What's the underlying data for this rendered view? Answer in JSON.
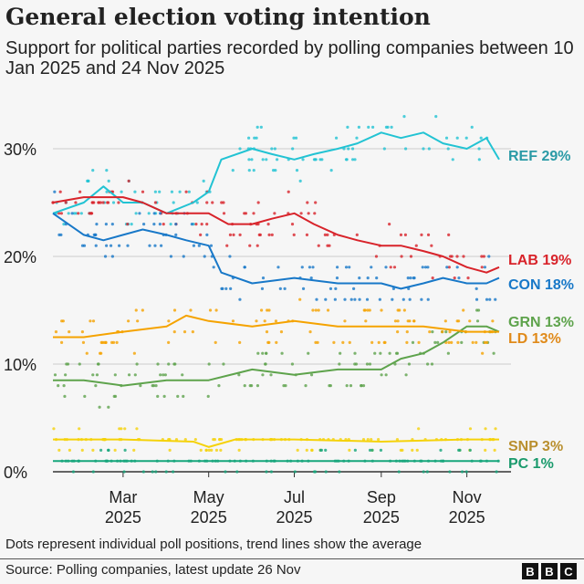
{
  "title": "General election voting intention",
  "subtitle": "Support for political parties recorded by polling companies between 10 Jan 2025 and 24 Nov 2025",
  "note": "Dots represent individual poll positions, trend lines show the average",
  "source": "Source: Polling companies, latest update 26 Nov",
  "logo": [
    "B",
    "B",
    "C"
  ],
  "chart_data": {
    "type": "line",
    "title": "General election voting intention",
    "xlabel": "",
    "ylabel": "",
    "xlim": [
      "2025-01-10",
      "2025-11-24"
    ],
    "ylim": [
      0,
      35
    ],
    "grid": true,
    "y_ticks": [
      "0%",
      "10%",
      "20%",
      "30%"
    ],
    "x_ticks": [
      {
        "date": "2025-03-01",
        "label": [
          "Mar",
          "2025"
        ]
      },
      {
        "date": "2025-05-01",
        "label": [
          "May",
          "2025"
        ]
      },
      {
        "date": "2025-07-01",
        "label": [
          "Jul",
          "2025"
        ]
      },
      {
        "date": "2025-09-01",
        "label": [
          "Sep",
          "2025"
        ]
      },
      {
        "date": "2025-11-01",
        "label": [
          "Nov",
          "2025"
        ]
      }
    ],
    "series": [
      {
        "name": "REF",
        "label": "REF 29%",
        "color": "#22c3d3",
        "label_color": "#2a9aa6",
        "x": [
          "2025-01-10",
          "2025-02-01",
          "2025-02-15",
          "2025-03-01",
          "2025-03-15",
          "2025-04-01",
          "2025-04-20",
          "2025-05-01",
          "2025-05-10",
          "2025-06-01",
          "2025-06-15",
          "2025-07-01",
          "2025-07-15",
          "2025-08-01",
          "2025-08-15",
          "2025-09-01",
          "2025-09-15",
          "2025-10-01",
          "2025-10-15",
          "2025-11-01",
          "2025-11-15",
          "2025-11-24"
        ],
        "y": [
          24,
          25,
          26.5,
          25,
          25,
          24,
          25,
          26,
          29,
          30,
          29.5,
          29,
          29.5,
          30,
          30.5,
          31.5,
          31,
          31.5,
          30.5,
          30,
          31,
          29
        ]
      },
      {
        "name": "LAB",
        "label": "LAB 19%",
        "color": "#d8232a",
        "label_color": "#d8232a",
        "x": [
          "2025-01-10",
          "2025-02-01",
          "2025-03-01",
          "2025-03-15",
          "2025-04-01",
          "2025-05-01",
          "2025-05-15",
          "2025-06-01",
          "2025-06-15",
          "2025-07-01",
          "2025-07-15",
          "2025-08-01",
          "2025-08-15",
          "2025-09-01",
          "2025-09-15",
          "2025-10-01",
          "2025-10-15",
          "2025-11-01",
          "2025-11-15",
          "2025-11-24"
        ],
        "y": [
          25,
          25.5,
          25.5,
          25,
          24,
          24,
          23,
          23,
          23.5,
          24,
          23,
          22,
          21.5,
          21,
          21,
          20.5,
          20,
          19,
          18.5,
          19
        ]
      },
      {
        "name": "CON",
        "label": "CON 18%",
        "color": "#1878c8",
        "label_color": "#1878c8",
        "x": [
          "2025-01-10",
          "2025-02-01",
          "2025-02-15",
          "2025-03-01",
          "2025-03-15",
          "2025-04-01",
          "2025-04-15",
          "2025-05-01",
          "2025-05-10",
          "2025-06-01",
          "2025-07-01",
          "2025-08-01",
          "2025-09-01",
          "2025-09-15",
          "2025-10-01",
          "2025-10-15",
          "2025-11-01",
          "2025-11-15",
          "2025-11-24"
        ],
        "y": [
          24,
          22,
          21.5,
          22,
          22.5,
          22,
          21.5,
          21,
          18.5,
          17.5,
          18,
          17.5,
          17.5,
          17,
          17.5,
          18,
          17.5,
          17.5,
          18
        ]
      },
      {
        "name": "GRN",
        "label": "GRN 13%",
        "color": "#5ea34c",
        "label_color": "#5ea34c",
        "x": [
          "2025-01-10",
          "2025-02-01",
          "2025-03-01",
          "2025-04-01",
          "2025-05-01",
          "2025-06-01",
          "2025-07-01",
          "2025-08-01",
          "2025-09-01",
          "2025-09-15",
          "2025-10-01",
          "2025-10-15",
          "2025-11-01",
          "2025-11-15",
          "2025-11-24"
        ],
        "y": [
          8.5,
          8.5,
          8,
          8.5,
          8.5,
          9.5,
          9,
          9.5,
          9.5,
          10.5,
          11,
          12,
          13.5,
          13.5,
          13
        ]
      },
      {
        "name": "LD",
        "label": "LD 13%",
        "color": "#f5a300",
        "label_color": "#e08a1a",
        "x": [
          "2025-01-10",
          "2025-02-01",
          "2025-03-01",
          "2025-04-01",
          "2025-04-15",
          "2025-05-01",
          "2025-06-01",
          "2025-07-01",
          "2025-08-01",
          "2025-09-01",
          "2025-10-01",
          "2025-11-01",
          "2025-11-24"
        ],
        "y": [
          12.5,
          12.5,
          13,
          13.5,
          14.5,
          14,
          13.5,
          14,
          13.5,
          13.5,
          13.5,
          13,
          13
        ]
      },
      {
        "name": "SNP",
        "label": "SNP 3%",
        "color": "#f5d20a",
        "label_color": "#b98f2e",
        "x": [
          "2025-01-10",
          "2025-03-01",
          "2025-04-20",
          "2025-05-01",
          "2025-05-20",
          "2025-07-01",
          "2025-09-01",
          "2025-11-01",
          "2025-11-24"
        ],
        "y": [
          3,
          3,
          2.8,
          2.3,
          3,
          3,
          2.8,
          3,
          3
        ]
      },
      {
        "name": "PC",
        "label": "PC 1%",
        "color": "#17a67c",
        "label_color": "#1a9a6c",
        "x": [
          "2025-01-10",
          "2025-03-01",
          "2025-05-01",
          "2025-07-01",
          "2025-09-01",
          "2025-11-01",
          "2025-11-24"
        ],
        "y": [
          1,
          1,
          1,
          1,
          1,
          1,
          1
        ]
      }
    ]
  }
}
